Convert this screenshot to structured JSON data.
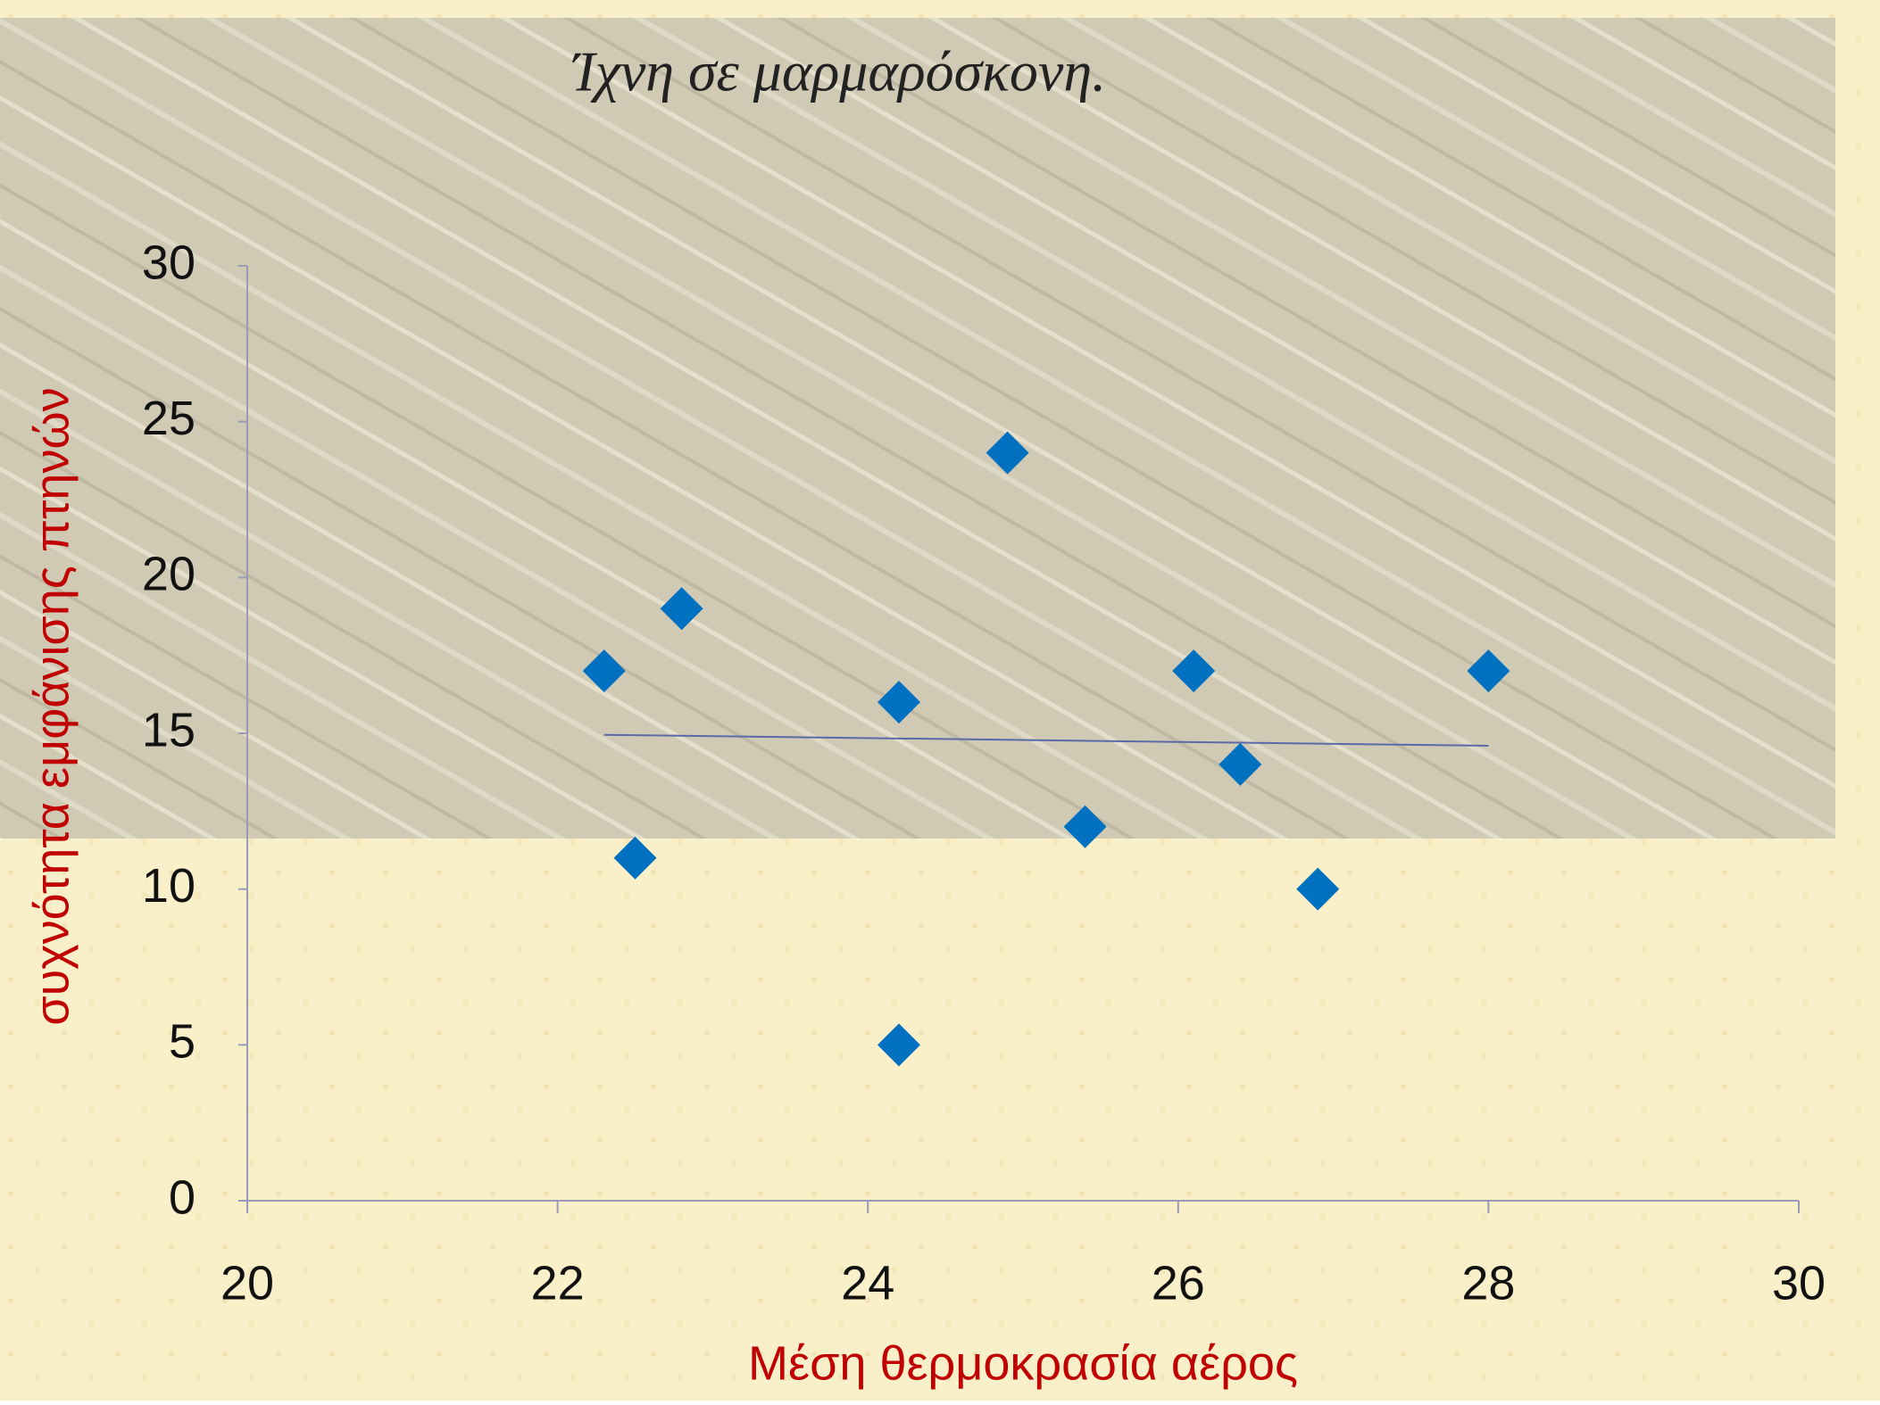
{
  "chart_data": {
    "type": "scatter",
    "title": "Ίχνη σε μαρμαρόσκονη.",
    "x_label": "Μέση θερμοκρασία αέρος",
    "y_label": "συχνότητα εμφάνισης πτηνών",
    "x": [
      22.3,
      22.5,
      22.8,
      24.2,
      24.2,
      24.9,
      25.4,
      26.1,
      26.4,
      26.9,
      28
    ],
    "values": [
      17,
      11,
      19,
      16,
      5,
      24,
      12,
      17,
      14,
      10,
      17
    ],
    "color": "#0070c0",
    "trendline": {
      "x": [
        22.3,
        28
      ],
      "y": [
        14.95,
        14.6
      ],
      "color": "#5a6aa8"
    },
    "xlim": [
      20,
      30
    ],
    "xticks": [
      20,
      22,
      24,
      26,
      28,
      30
    ],
    "ylim": [
      0,
      30
    ],
    "yticks": [
      0,
      5,
      10,
      15,
      20,
      25,
      30
    ]
  }
}
